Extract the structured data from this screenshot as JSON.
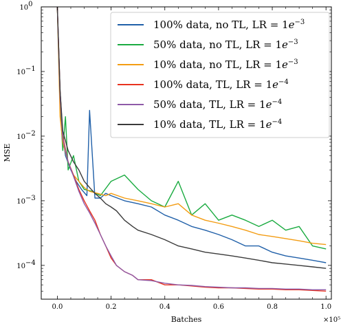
{
  "chart_data": {
    "type": "line",
    "title": "",
    "xlabel": "Batches",
    "ylabel": "MSE",
    "x_scale_label": "×10⁵",
    "xlim": [
      -0.06,
      1.02
    ],
    "ylim": [
      3e-05,
      1.0
    ],
    "yscale": "log",
    "grid": false,
    "legend_position": "top-right",
    "x_ticks": [
      {
        "value": 0.0,
        "label": "0.0"
      },
      {
        "value": 0.2,
        "label": "0.2"
      },
      {
        "value": 0.4,
        "label": "0.4"
      },
      {
        "value": 0.6,
        "label": "0.6"
      },
      {
        "value": 0.8,
        "label": "0.8"
      },
      {
        "value": 1.0,
        "label": "1.0"
      }
    ],
    "y_ticks": [
      {
        "value": 1.0,
        "base": "10",
        "exp": "0"
      },
      {
        "value": 0.1,
        "base": "10",
        "exp": "−1"
      },
      {
        "value": 0.01,
        "base": "10",
        "exp": "−2"
      },
      {
        "value": 0.001,
        "base": "10",
        "exp": "−3"
      },
      {
        "value": 0.0001,
        "base": "10",
        "exp": "−4"
      }
    ],
    "series": [
      {
        "name": "100% data, no TL, LR = 1e−3",
        "legend": {
          "main": "100% data, no TL, LR = 1",
          "sub": "e",
          "sup": "−3"
        },
        "color": "#1f5fa8",
        "x": [
          0,
          0.01,
          0.02,
          0.03,
          0.05,
          0.07,
          0.09,
          0.11,
          0.12,
          0.14,
          0.16,
          0.18,
          0.2,
          0.25,
          0.3,
          0.35,
          0.4,
          0.45,
          0.5,
          0.55,
          0.6,
          0.65,
          0.7,
          0.75,
          0.8,
          0.85,
          0.9,
          0.95,
          1.0
        ],
        "y": [
          1.0,
          0.05,
          0.01,
          0.005,
          0.003,
          0.002,
          0.0015,
          0.0012,
          0.025,
          0.0011,
          0.0011,
          0.0013,
          0.0012,
          0.001,
          0.0009,
          0.0008,
          0.0006,
          0.0005,
          0.0004,
          0.00035,
          0.0003,
          0.00025,
          0.0002,
          0.0002,
          0.00016,
          0.00014,
          0.00013,
          0.00012,
          0.00011
        ]
      },
      {
        "name": "50% data, no TL, LR = 1e−3",
        "legend": {
          "main": "50% data, no TL, LR = 1",
          "sub": "e",
          "sup": "−3"
        },
        "color": "#1aab40",
        "x": [
          0,
          0.01,
          0.02,
          0.03,
          0.04,
          0.06,
          0.08,
          0.1,
          0.13,
          0.16,
          0.2,
          0.25,
          0.3,
          0.35,
          0.4,
          0.45,
          0.5,
          0.55,
          0.6,
          0.65,
          0.7,
          0.75,
          0.8,
          0.85,
          0.9,
          0.95,
          1.0
        ],
        "y": [
          1.0,
          0.03,
          0.006,
          0.02,
          0.003,
          0.005,
          0.002,
          0.0015,
          0.0014,
          0.0012,
          0.002,
          0.0025,
          0.0015,
          0.001,
          0.0008,
          0.002,
          0.0006,
          0.0009,
          0.0005,
          0.0006,
          0.0005,
          0.0004,
          0.0005,
          0.00035,
          0.0004,
          0.0002,
          0.00018
        ]
      },
      {
        "name": "10% data, no TL, LR = 1e−3",
        "legend": {
          "main": "10% data, no TL, LR = 1",
          "sub": "e",
          "sup": "−3"
        },
        "color": "#f39c12",
        "x": [
          0,
          0.01,
          0.02,
          0.04,
          0.06,
          0.08,
          0.1,
          0.12,
          0.15,
          0.18,
          0.2,
          0.25,
          0.3,
          0.35,
          0.4,
          0.45,
          0.5,
          0.55,
          0.6,
          0.65,
          0.7,
          0.75,
          0.8,
          0.85,
          0.9,
          0.95,
          1.0
        ],
        "y": [
          1.0,
          0.02,
          0.008,
          0.004,
          0.0025,
          0.002,
          0.0016,
          0.0014,
          0.0013,
          0.0012,
          0.0013,
          0.0011,
          0.001,
          0.0009,
          0.0008,
          0.0009,
          0.0006,
          0.0005,
          0.00045,
          0.0004,
          0.00035,
          0.0003,
          0.00028,
          0.00026,
          0.00024,
          0.00022,
          0.00021
        ]
      },
      {
        "name": "100% data, TL, LR = 1e−4",
        "legend": {
          "main": "100% data, TL, LR = 1",
          "sub": "e",
          "sup": "−4"
        },
        "color": "#e8321e",
        "x": [
          0,
          0.01,
          0.02,
          0.04,
          0.06,
          0.08,
          0.1,
          0.12,
          0.14,
          0.16,
          0.18,
          0.2,
          0.22,
          0.25,
          0.28,
          0.3,
          0.35,
          0.4,
          0.45,
          0.5,
          0.55,
          0.6,
          0.65,
          0.7,
          0.75,
          0.8,
          0.85,
          0.9,
          0.95,
          1.0
        ],
        "y": [
          1.0,
          0.05,
          0.01,
          0.004,
          0.0025,
          0.0015,
          0.001,
          0.0007,
          0.0005,
          0.0003,
          0.0002,
          0.00013,
          0.0001,
          8e-05,
          7e-05,
          6e-05,
          6e-05,
          5e-05,
          5e-05,
          4.8e-05,
          4.6e-05,
          4.5e-05,
          4.5e-05,
          4.4e-05,
          4.3e-05,
          4.3e-05,
          4.2e-05,
          4.2e-05,
          4.1e-05,
          4e-05
        ]
      },
      {
        "name": "50% data, TL, LR = 1e−4",
        "legend": {
          "main": "50% data, TL, LR = 1",
          "sub": "e",
          "sup": "−4"
        },
        "color": "#8e5aa8",
        "x": [
          0,
          0.01,
          0.02,
          0.04,
          0.06,
          0.08,
          0.1,
          0.12,
          0.14,
          0.16,
          0.18,
          0.2,
          0.22,
          0.25,
          0.28,
          0.3,
          0.35,
          0.4,
          0.45,
          0.5,
          0.55,
          0.6,
          0.65,
          0.7,
          0.75,
          0.8,
          0.85,
          0.9,
          0.95,
          1.0
        ],
        "y": [
          1.0,
          0.04,
          0.009,
          0.004,
          0.0024,
          0.0014,
          0.0009,
          0.00065,
          0.00045,
          0.0003,
          0.0002,
          0.00014,
          0.0001,
          8e-05,
          7e-05,
          6e-05,
          5.8e-05,
          5.3e-05,
          5e-05,
          4.9e-05,
          4.7e-05,
          4.6e-05,
          4.5e-05,
          4.5e-05,
          4.4e-05,
          4.4e-05,
          4.3e-05,
          4.3e-05,
          4.2e-05,
          4.2e-05
        ]
      },
      {
        "name": "10% data, TL, LR = 1e−4",
        "legend": {
          "main": "10% data, TL, LR = 1",
          "sub": "e",
          "sup": "−4"
        },
        "color": "#3a3a3a",
        "x": [
          0,
          0.01,
          0.02,
          0.04,
          0.06,
          0.08,
          0.1,
          0.12,
          0.14,
          0.16,
          0.18,
          0.2,
          0.22,
          0.25,
          0.28,
          0.3,
          0.35,
          0.4,
          0.45,
          0.5,
          0.55,
          0.6,
          0.65,
          0.7,
          0.75,
          0.8,
          0.85,
          0.9,
          0.95,
          1.0
        ],
        "y": [
          1.0,
          0.05,
          0.012,
          0.006,
          0.004,
          0.003,
          0.002,
          0.0016,
          0.0013,
          0.0011,
          0.0009,
          0.0008,
          0.0007,
          0.0005,
          0.0004,
          0.00035,
          0.0003,
          0.00025,
          0.0002,
          0.00018,
          0.00016,
          0.00015,
          0.00014,
          0.00013,
          0.00012,
          0.00011,
          0.000105,
          0.0001,
          9.5e-05,
          9e-05
        ]
      }
    ]
  }
}
